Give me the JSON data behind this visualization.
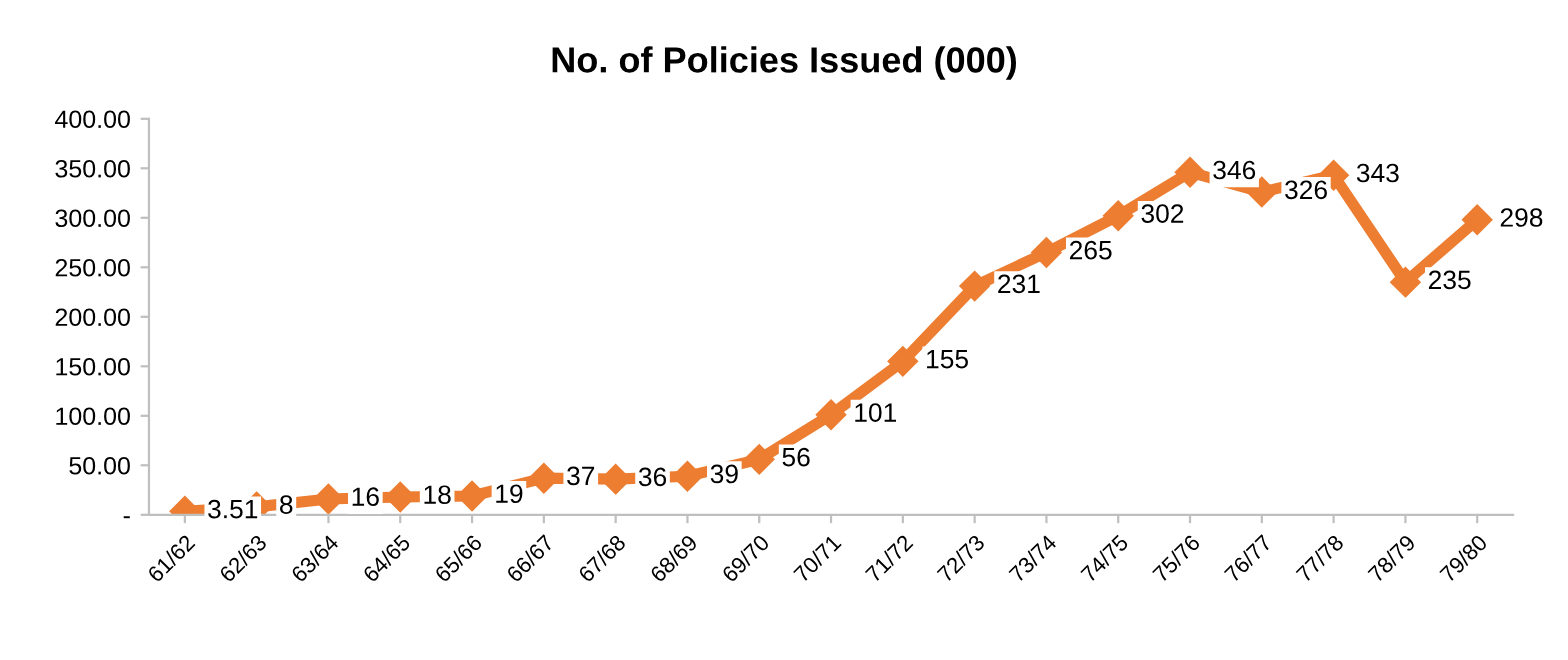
{
  "chart_data": {
    "type": "line",
    "title": "No. of Policies Issued (000)",
    "categories": [
      "61/62",
      "62/63",
      "63/64",
      "64/65",
      "65/66",
      "66/67",
      "67/68",
      "68/69",
      "69/70",
      "70/71",
      "71/72",
      "72/73",
      "73/74",
      "74/75",
      "75/76",
      "76/77",
      "77/78",
      "78/79",
      "79/80"
    ],
    "series": [
      {
        "color": "#ed7d31",
        "values": [
          3.51,
          8,
          16,
          18,
          19,
          37,
          36,
          39,
          56,
          101,
          155,
          231,
          265,
          302,
          346,
          326,
          343,
          235,
          298
        ]
      }
    ],
    "ylim": [
      0,
      400
    ],
    "yticks": [
      {
        "value": 0,
        "label": "-"
      },
      {
        "value": 50,
        "label": "50.00"
      },
      {
        "value": 100,
        "label": "100.00"
      },
      {
        "value": 150,
        "label": "150.00"
      },
      {
        "value": 200,
        "label": "200.00"
      },
      {
        "value": 250,
        "label": "250.00"
      },
      {
        "value": 300,
        "label": "300.00"
      },
      {
        "value": 350,
        "label": "350.00"
      },
      {
        "value": 400,
        "label": "400.00"
      }
    ],
    "marker": "diamond",
    "line_style": "solid",
    "data_labels": true,
    "grid": false
  }
}
